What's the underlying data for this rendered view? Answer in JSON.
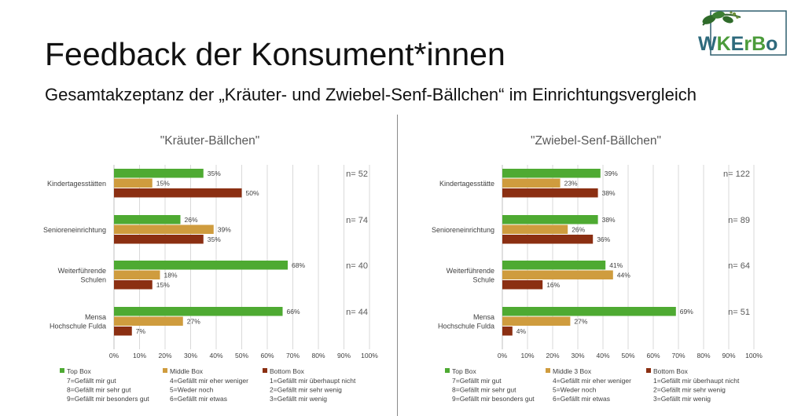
{
  "header": {
    "title": "Feedback der Konsument*innen",
    "subtitle": "Gesamtakzeptanz der „Kräuter- und Zwiebel-Senf-Bällchen“ im Einrichtungsvergleich"
  },
  "logo": {
    "text": "WKErBo",
    "icon": "leaf-branch-icon"
  },
  "colors": {
    "top": "#4EAA32",
    "middle": "#CF9C3E",
    "bottom": "#8B2F12",
    "grid": "#D9D9D9",
    "text": "#404040"
  },
  "chart_data": [
    {
      "type": "bar",
      "orientation": "horizontal",
      "title": "\"Kräuter-Bällchen\"",
      "categories": [
        "Kindertagesstätten",
        "Senioreneinrichtung",
        "Weiterführende\nSchulen",
        "Mensa\nHochschule Fulda"
      ],
      "n": [
        "n= 52",
        "n= 74",
        "n= 40",
        "n= 44"
      ],
      "series": [
        {
          "name": "Top Box",
          "values": [
            35,
            26,
            68,
            66
          ]
        },
        {
          "name": "Middle Box",
          "values": [
            15,
            39,
            18,
            27
          ]
        },
        {
          "name": "Bottom Box",
          "values": [
            50,
            35,
            15,
            7
          ]
        }
      ],
      "xlim": [
        0,
        100
      ],
      "xticks": [
        "0%",
        "10%",
        "20%",
        "30%",
        "40%",
        "50%",
        "60%",
        "70%",
        "80%",
        "90%",
        "100%"
      ],
      "grid": true,
      "legend": [
        {
          "name": "Top Box",
          "lines": [
            "7=Gefällt mir gut",
            "8=Gefällt mir sehr gut",
            "9=Gefällt mir besonders gut"
          ]
        },
        {
          "name": "Middle Box",
          "lines": [
            "4=Gefällt mir eher weniger",
            "5=Weder noch",
            "6=Gefällt mir etwas"
          ]
        },
        {
          "name": "Bottom Box",
          "lines": [
            "1=Gefällt mir überhaupt nicht",
            "2=Gefällt mir sehr wenig",
            "3=Gefällt mir wenig"
          ]
        }
      ]
    },
    {
      "type": "bar",
      "orientation": "horizontal",
      "title": "\"Zwiebel-Senf-Bällchen\"",
      "categories": [
        "Kindertagesstätte",
        "Senioreneinrichtung",
        "Weiterführende\nSchule",
        "Mensa\nHochschule Fulda"
      ],
      "n": [
        "n= 122",
        "n= 89",
        "n= 64",
        "n= 51"
      ],
      "series": [
        {
          "name": "Top Box",
          "values": [
            39,
            38,
            41,
            69
          ]
        },
        {
          "name": "Middle 3 Box",
          "values": [
            23,
            26,
            44,
            27
          ]
        },
        {
          "name": "Bottom Box",
          "values": [
            38,
            36,
            16,
            4
          ]
        }
      ],
      "xlim": [
        0,
        100
      ],
      "xticks": [
        "0%",
        "10%",
        "20%",
        "30%",
        "40%",
        "50%",
        "60%",
        "70%",
        "80%",
        "90%",
        "100%"
      ],
      "grid": true,
      "legend": [
        {
          "name": "Top Box",
          "lines": [
            "7=Gefällt mir gut",
            "8=Gefällt mir sehr gut",
            "9=Gefällt mir besonders gut"
          ]
        },
        {
          "name": "Middle 3 Box",
          "lines": [
            "4=Gefällt mir eher weniger",
            "5=Weder noch",
            "6=Gefällt mir etwas"
          ]
        },
        {
          "name": "Bottom Box",
          "lines": [
            "1=Gefällt mir überhaupt nicht",
            "2=Gefällt mir sehr wenig",
            "3=Gefällt mir wenig"
          ]
        }
      ]
    }
  ]
}
